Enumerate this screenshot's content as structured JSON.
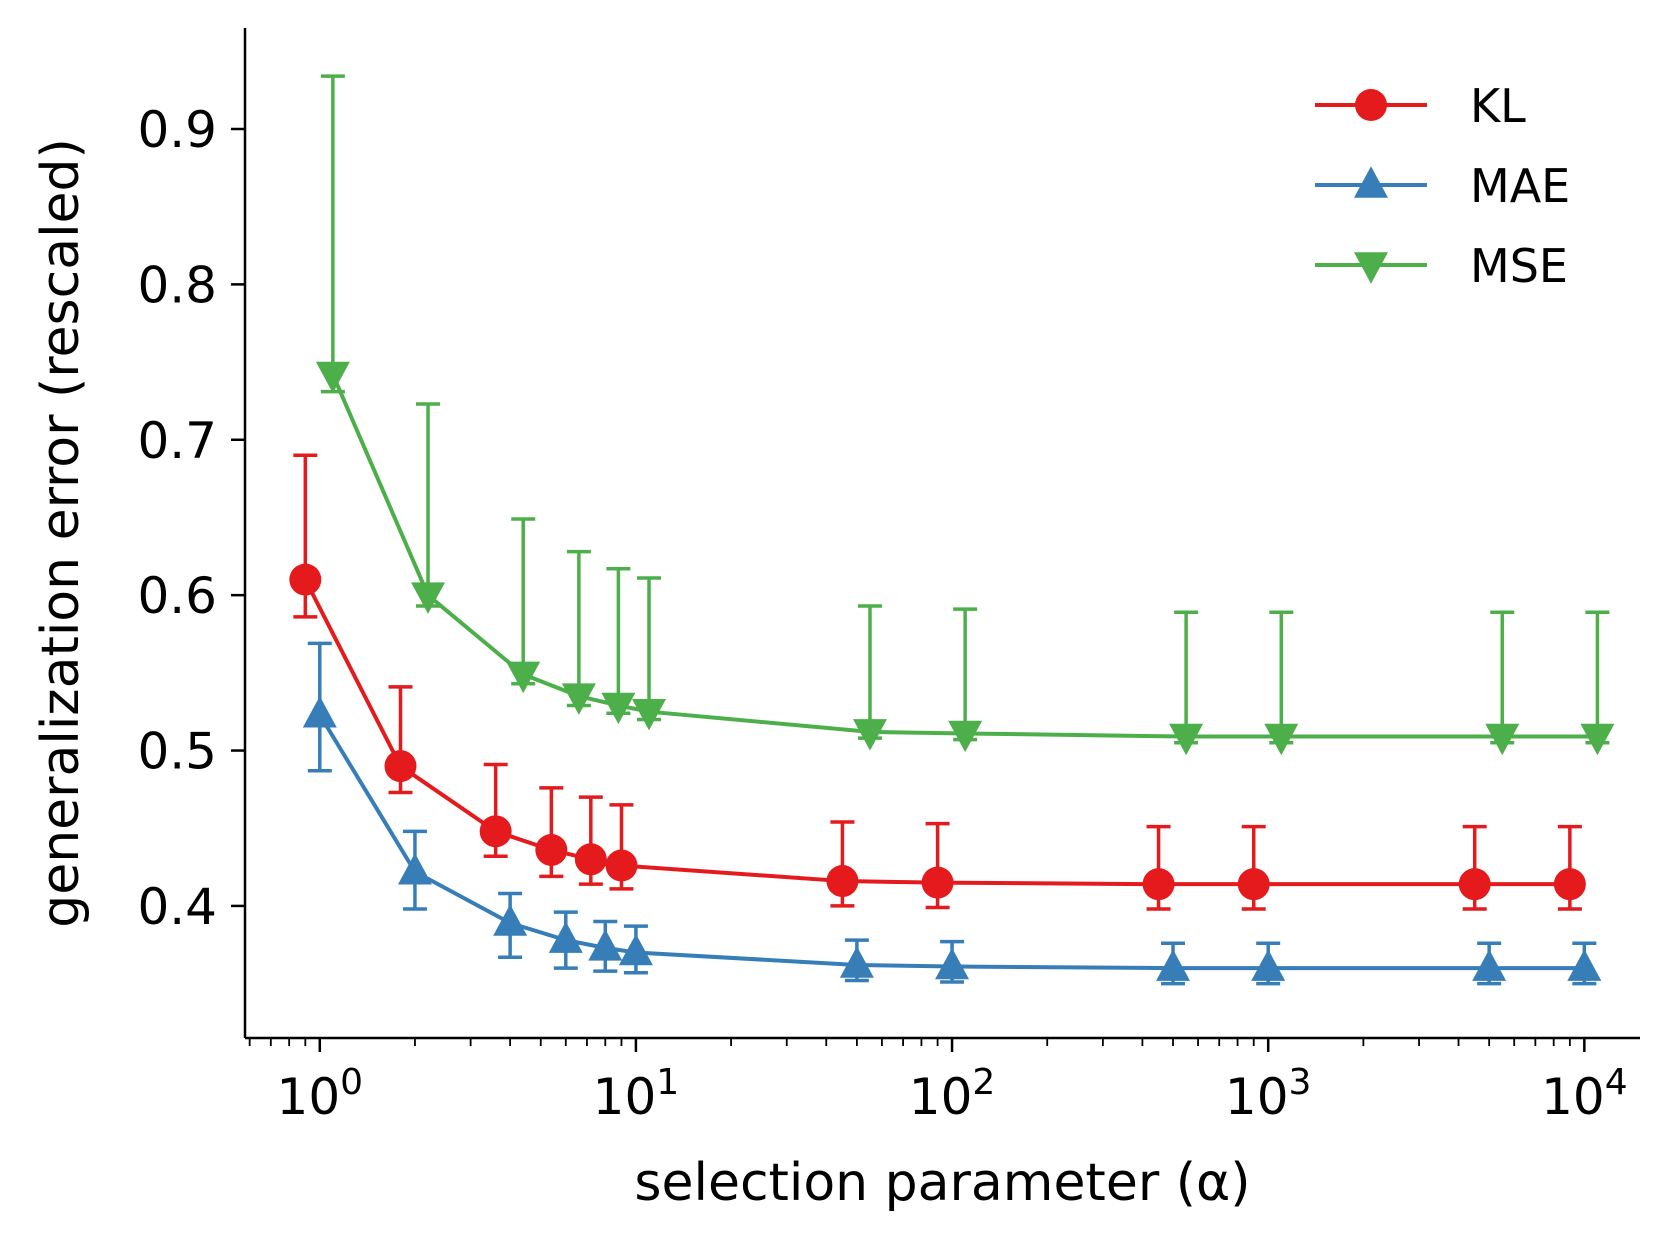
{
  "chart_data": {
    "type": "line",
    "title": "",
    "xlabel": "selection parameter (α)",
    "ylabel": "generalization error (rescaled)",
    "xscale": "log",
    "xlim": [
      0.58,
      15000
    ],
    "ylim": [
      0.315,
      0.965
    ],
    "x_ticks": [
      {
        "value": 1,
        "base": "10",
        "exp": "0"
      },
      {
        "value": 10,
        "base": "10",
        "exp": "1"
      },
      {
        "value": 100,
        "base": "10",
        "exp": "2"
      },
      {
        "value": 1000,
        "base": "10",
        "exp": "3"
      },
      {
        "value": 10000,
        "base": "10",
        "exp": "4"
      }
    ],
    "y_ticks": [
      {
        "value": 0.4,
        "label": "0.4"
      },
      {
        "value": 0.5,
        "label": "0.5"
      },
      {
        "value": 0.6,
        "label": "0.6"
      },
      {
        "value": 0.7,
        "label": "0.7"
      },
      {
        "value": 0.8,
        "label": "0.8"
      },
      {
        "value": 0.9,
        "label": "0.9"
      }
    ],
    "legend_position": "top-right",
    "series": [
      {
        "name": "KL",
        "color": "#e41a1c",
        "marker": "circle",
        "x": [
          0.9,
          1.8,
          3.6,
          5.4,
          7.2,
          9.0,
          45,
          90,
          450,
          900,
          4500,
          9000
        ],
        "y": [
          0.61,
          0.49,
          0.448,
          0.436,
          0.43,
          0.426,
          0.416,
          0.415,
          0.414,
          0.414,
          0.414,
          0.414
        ],
        "err_low": [
          0.024,
          0.017,
          0.016,
          0.017,
          0.016,
          0.015,
          0.016,
          0.016,
          0.016,
          0.016,
          0.016,
          0.016
        ],
        "err_high": [
          0.08,
          0.051,
          0.043,
          0.04,
          0.04,
          0.039,
          0.038,
          0.038,
          0.037,
          0.037,
          0.037,
          0.037
        ]
      },
      {
        "name": "MAE",
        "color": "#377eb8",
        "marker": "triangle-up",
        "x": [
          1.0,
          2.0,
          4.0,
          6.0,
          8.0,
          10.0,
          50,
          100,
          500,
          1000,
          5000,
          10000
        ],
        "y": [
          0.523,
          0.422,
          0.389,
          0.378,
          0.373,
          0.37,
          0.362,
          0.361,
          0.36,
          0.36,
          0.36,
          0.36
        ],
        "err_low": [
          0.036,
          0.024,
          0.022,
          0.018,
          0.015,
          0.013,
          0.01,
          0.01,
          0.01,
          0.01,
          0.01,
          0.01
        ],
        "err_high": [
          0.046,
          0.026,
          0.019,
          0.018,
          0.017,
          0.017,
          0.016,
          0.016,
          0.016,
          0.016,
          0.016,
          0.016
        ]
      },
      {
        "name": "MSE",
        "color": "#4daf4a",
        "marker": "triangle-down",
        "x": [
          1.1,
          2.2,
          4.4,
          6.6,
          8.8,
          11.0,
          55,
          110,
          550,
          1100,
          5500,
          11000
        ],
        "y": [
          0.742,
          0.6,
          0.549,
          0.535,
          0.529,
          0.525,
          0.512,
          0.511,
          0.509,
          0.509,
          0.509,
          0.509
        ],
        "err_low": [
          0.011,
          0.007,
          0.006,
          0.006,
          0.005,
          0.005,
          0.004,
          0.004,
          0.004,
          0.004,
          0.004,
          0.004
        ],
        "err_high": [
          0.192,
          0.123,
          0.1,
          0.093,
          0.088,
          0.086,
          0.081,
          0.08,
          0.08,
          0.08,
          0.08,
          0.08
        ]
      }
    ]
  }
}
